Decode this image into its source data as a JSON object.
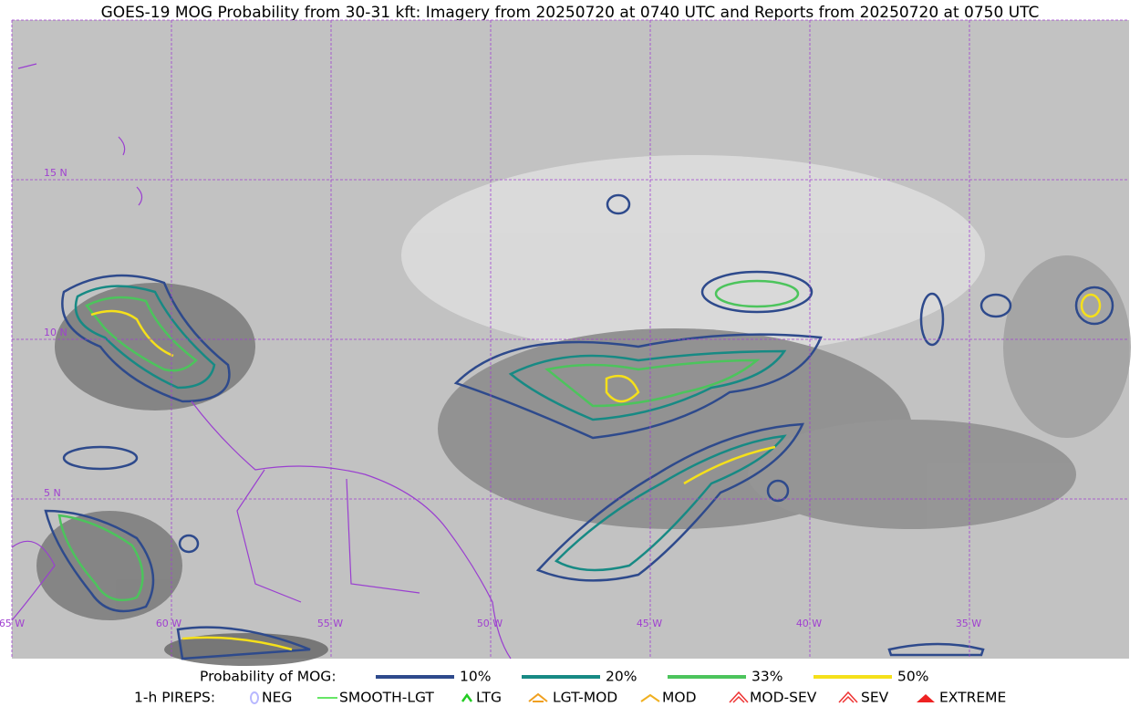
{
  "title": "GOES-19 MOG Probability from 30-31 kft: Imagery from 20250720 at 0740 UTC and Reports from 20250720 at 0750 UTC",
  "map": {
    "latitude_labels": [
      "15 N",
      "10 N",
      "5 N"
    ],
    "longitude_labels": [
      "65 W",
      "60 W",
      "55 W",
      "50 W",
      "45 W",
      "40 W",
      "35 W"
    ]
  },
  "legend": {
    "probability": {
      "label": "Probability of MOG:",
      "items": [
        {
          "label": "10%",
          "color": "#2e4a8c"
        },
        {
          "label": "20%",
          "color": "#178a84"
        },
        {
          "label": "33%",
          "color": "#4cc45c"
        },
        {
          "label": "50%",
          "color": "#f5e01a"
        }
      ]
    },
    "pireps": {
      "label": "1-h PIREPS:",
      "items": [
        {
          "label": "NEG",
          "color": "#b8b8ff"
        },
        {
          "label": "SMOOTH-LGT",
          "color": "#33dd33"
        },
        {
          "label": "LTG",
          "color": "#22cc22"
        },
        {
          "label": "LGT-MOD",
          "color": "#f0a020"
        },
        {
          "label": "MOD",
          "color": "#f0b020"
        },
        {
          "label": "MOD-SEV",
          "color": "#ee3333"
        },
        {
          "label": "SEV",
          "color": "#ee3333"
        },
        {
          "label": "EXTREME",
          "color": "#ee2222"
        }
      ]
    }
  }
}
